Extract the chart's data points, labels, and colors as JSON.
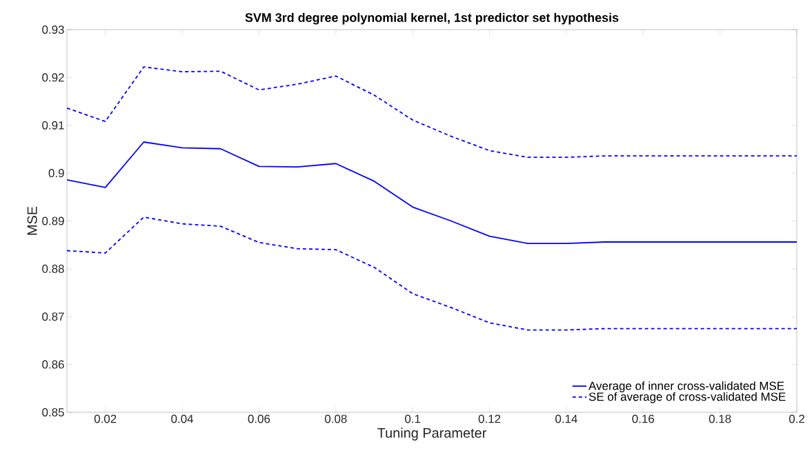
{
  "chart_data": {
    "type": "line",
    "title": "SVM 3rd degree polynomial kernel, 1st predictor set hypothesis",
    "xlabel": "Tuning Parameter",
    "ylabel": "MSE",
    "x": [
      0.01,
      0.02,
      0.03,
      0.04,
      0.05,
      0.06,
      0.07,
      0.08,
      0.09,
      0.1,
      0.11,
      0.12,
      0.13,
      0.14,
      0.15,
      0.16,
      0.17,
      0.18,
      0.19,
      0.2
    ],
    "series": [
      {
        "name": "Average of inner cross-validated MSE",
        "color": "#0000ff",
        "line_style": "solid",
        "values": [
          0.8986,
          0.897,
          0.9065,
          0.9053,
          0.9051,
          0.9014,
          0.9013,
          0.902,
          0.8983,
          0.8929,
          0.89,
          0.8868,
          0.8853,
          0.8853,
          0.8856,
          0.8856,
          0.8856,
          0.8856,
          0.8856,
          0.8856
        ]
      },
      {
        "name": "SE of average of cross-validated MSE",
        "color": "#0000ff",
        "line_style": "dashed",
        "values": [
          0.9136,
          0.9108,
          0.9222,
          0.9212,
          0.9213,
          0.9174,
          0.9186,
          0.9203,
          0.9163,
          0.9111,
          0.9077,
          0.9047,
          0.9033,
          0.9033,
          0.9036,
          0.9036,
          0.9036,
          0.9036,
          0.9036,
          0.9036
        ]
      },
      {
        "color": "#0000ff",
        "line_style": "dashed",
        "values": [
          0.8838,
          0.8833,
          0.8908,
          0.8894,
          0.8889,
          0.8855,
          0.8842,
          0.884,
          0.8803,
          0.8748,
          0.8719,
          0.8687,
          0.8672,
          0.8672,
          0.8675,
          0.8675,
          0.8675,
          0.8675,
          0.8675,
          0.8675
        ]
      }
    ],
    "xlim": [
      0.01,
      0.2
    ],
    "xticks": [
      0.02,
      0.04,
      0.06,
      0.08,
      0.1,
      0.12,
      0.14,
      0.16,
      0.18,
      0.2
    ],
    "ylim": [
      0.85,
      0.93
    ],
    "yticks": [
      0.85,
      0.86,
      0.87,
      0.88,
      0.89,
      0.9,
      0.91,
      0.92,
      0.93
    ],
    "grid": false,
    "legend": "bottom right",
    "marker": "none"
  }
}
